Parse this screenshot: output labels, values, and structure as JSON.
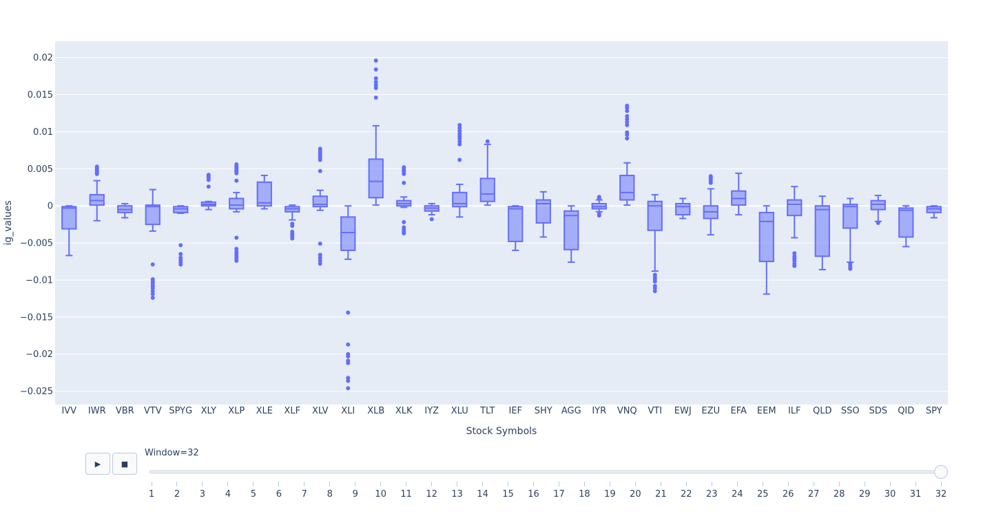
{
  "chart_data": {
    "type": "box",
    "title": "",
    "xlabel": "Stock Symbols",
    "ylabel": "ig_values",
    "ylim": [
      -0.0268,
      0.0222
    ],
    "yticks": [
      0.02,
      0.015,
      0.01,
      0.005,
      0,
      -0.005,
      -0.01,
      -0.015,
      -0.02,
      -0.025
    ],
    "ytick_labels": [
      "0.02",
      "0.015",
      "0.01",
      "0.005",
      "0",
      "−0.005",
      "−0.01",
      "−0.015",
      "−0.02",
      "−0.025"
    ],
    "color": "#636efa",
    "fill": "rgba(99,110,250,0.5)",
    "plot_bg": "#e5ecf6",
    "grid": true,
    "categories": [
      "IVV",
      "IWR",
      "VBR",
      "VTV",
      "SPYG",
      "XLY",
      "XLP",
      "XLE",
      "XLF",
      "XLV",
      "XLI",
      "XLB",
      "XLK",
      "IYZ",
      "XLU",
      "TLT",
      "IEF",
      "SHY",
      "AGG",
      "IYR",
      "VNQ",
      "VTI",
      "EWJ",
      "EZU",
      "EFA",
      "EEM",
      "ILF",
      "QLD",
      "SSO",
      "SDS",
      "QID",
      "SPY"
    ],
    "boxes": [
      {
        "name": "IVV",
        "min": -0.0067,
        "q1": -0.0031,
        "median": -0.0003,
        "q3": -0.0001,
        "max": 0.0,
        "outliers": []
      },
      {
        "name": "IWR",
        "min": -0.002,
        "q1": 0.0001,
        "median": 0.0007,
        "q3": 0.0015,
        "max": 0.0034,
        "outliers": [
          0.0043,
          0.0045,
          0.0047,
          0.0049,
          0.0051,
          0.0053
        ]
      },
      {
        "name": "VBR",
        "min": -0.0016,
        "q1": -0.0009,
        "median": -0.0005,
        "q3": 0.0,
        "max": 0.0003,
        "outliers": []
      },
      {
        "name": "VTV",
        "min": -0.0034,
        "q1": -0.0025,
        "median": -0.0001,
        "q3": 0.0001,
        "max": 0.0022,
        "outliers": [
          -0.0079,
          -0.0099,
          -0.0102,
          -0.0105,
          -0.0108,
          -0.0111,
          -0.0115,
          -0.0119,
          -0.0124
        ]
      },
      {
        "name": "SPYG",
        "min": -0.001,
        "q1": -0.0009,
        "median": -0.0004,
        "q3": -0.0001,
        "max": 0.0,
        "outliers": [
          -0.0053,
          -0.0065,
          -0.007,
          -0.0073,
          -0.0076,
          -0.0079
        ]
      },
      {
        "name": "XLY",
        "min": -0.0005,
        "q1": 0.0,
        "median": 0.0002,
        "q3": 0.0005,
        "max": 0.0006,
        "outliers": [
          0.0026,
          0.0035,
          0.0038,
          0.004,
          0.0042
        ]
      },
      {
        "name": "XLP",
        "min": -0.0008,
        "q1": -0.0004,
        "median": 0.0001,
        "q3": 0.001,
        "max": 0.0018,
        "outliers": [
          0.0034,
          0.0044,
          0.0046,
          0.0048,
          0.005,
          0.0052,
          0.0054,
          0.0056,
          -0.0043,
          -0.0058,
          -0.0062,
          -0.0065,
          -0.0068,
          -0.0071,
          -0.0074
        ]
      },
      {
        "name": "XLE",
        "min": -0.0004,
        "q1": 0.0,
        "median": 0.0004,
        "q3": 0.0032,
        "max": 0.0041,
        "outliers": []
      },
      {
        "name": "XLF",
        "min": -0.0019,
        "q1": -0.0008,
        "median": -0.0004,
        "q3": -0.0001,
        "max": 0.0001,
        "outliers": [
          -0.0024,
          -0.0027,
          -0.0035,
          -0.0038,
          -0.0041,
          -0.0044
        ]
      },
      {
        "name": "XLV",
        "min": -0.0006,
        "q1": -0.0001,
        "median": 0.0002,
        "q3": 0.0013,
        "max": 0.0021,
        "outliers": [
          0.0047,
          0.0062,
          0.0065,
          0.0068,
          0.0071,
          0.0074,
          0.0077,
          -0.0051,
          -0.0066,
          -0.007,
          -0.0074,
          -0.0078
        ]
      },
      {
        "name": "XLI",
        "min": -0.0072,
        "q1": -0.006,
        "median": -0.0036,
        "q3": -0.0015,
        "max": 0.0,
        "outliers": [
          -0.0144,
          -0.0187,
          -0.02,
          -0.0203,
          -0.0209,
          -0.0212,
          -0.0232,
          -0.0236,
          -0.0246
        ]
      },
      {
        "name": "XLB",
        "min": 0.0001,
        "q1": 0.0011,
        "median": 0.0033,
        "q3": 0.0063,
        "max": 0.0108,
        "outliers": [
          0.0146,
          0.0159,
          0.0163,
          0.0167,
          0.0172,
          0.0184,
          0.0196
        ]
      },
      {
        "name": "XLK",
        "min": -0.0002,
        "q1": 0.0,
        "median": 0.0003,
        "q3": 0.0007,
        "max": 0.0012,
        "outliers": [
          0.0031,
          0.0043,
          0.0046,
          0.0048,
          0.005,
          0.0052,
          -0.0022,
          -0.0029,
          -0.0032,
          -0.0035,
          -0.0037
        ]
      },
      {
        "name": "IYZ",
        "min": -0.0012,
        "q1": -0.0007,
        "median": -0.0003,
        "q3": 0.0,
        "max": 0.0003,
        "outliers": [
          -0.0018
        ]
      },
      {
        "name": "XLU",
        "min": -0.0015,
        "q1": -0.0001,
        "median": 0.0003,
        "q3": 0.0018,
        "max": 0.0029,
        "outliers": [
          0.0062,
          0.0083,
          0.0087,
          0.0091,
          0.0094,
          0.0097,
          0.0101,
          0.0105,
          0.0109
        ]
      },
      {
        "name": "TLT",
        "min": 0.0001,
        "q1": 0.0006,
        "median": 0.0016,
        "q3": 0.0037,
        "max": 0.0083,
        "outliers": [
          0.0087
        ]
      },
      {
        "name": "IEF",
        "min": -0.006,
        "q1": -0.0048,
        "median": -0.0004,
        "q3": -0.0001,
        "max": 0.0,
        "outliers": []
      },
      {
        "name": "SHY",
        "min": -0.0042,
        "q1": -0.0023,
        "median": 0.0003,
        "q3": 0.0008,
        "max": 0.0019,
        "outliers": []
      },
      {
        "name": "AGG",
        "min": -0.0076,
        "q1": -0.0059,
        "median": -0.0013,
        "q3": -0.0007,
        "max": 0.0,
        "outliers": []
      },
      {
        "name": "IYR",
        "min": -0.0008,
        "q1": -0.0004,
        "median": -0.0001,
        "q3": 0.0003,
        "max": 0.0008,
        "outliers": [
          0.001,
          0.0012,
          -0.0011,
          -0.0013
        ]
      },
      {
        "name": "VNQ",
        "min": 0.0001,
        "q1": 0.0008,
        "median": 0.0018,
        "q3": 0.0041,
        "max": 0.0058,
        "outliers": [
          0.0091,
          0.0096,
          0.0099,
          0.0109,
          0.0113,
          0.0117,
          0.0121,
          0.0128,
          0.0132,
          0.0135
        ]
      },
      {
        "name": "VTI",
        "min": -0.0088,
        "q1": -0.0033,
        "median": 0.0,
        "q3": 0.0006,
        "max": 0.0015,
        "outliers": [
          -0.0093,
          -0.0096,
          -0.0099,
          -0.0102,
          -0.0108,
          -0.0111,
          -0.0115
        ]
      },
      {
        "name": "EWJ",
        "min": -0.0017,
        "q1": -0.0012,
        "median": -0.0001,
        "q3": 0.0003,
        "max": 0.001,
        "outliers": []
      },
      {
        "name": "EZU",
        "min": -0.0039,
        "q1": -0.0017,
        "median": -0.0008,
        "q3": 0.0,
        "max": 0.0023,
        "outliers": [
          0.0031,
          0.0034,
          0.0036,
          0.0038,
          0.004
        ]
      },
      {
        "name": "EFA",
        "min": -0.0012,
        "q1": 0.0001,
        "median": 0.001,
        "q3": 0.002,
        "max": 0.0044,
        "outliers": []
      },
      {
        "name": "EEM",
        "min": -0.0119,
        "q1": -0.0075,
        "median": -0.0021,
        "q3": -0.0009,
        "max": 0.0,
        "outliers": []
      },
      {
        "name": "ILF",
        "min": -0.0043,
        "q1": -0.0013,
        "median": 0.0002,
        "q3": 0.0008,
        "max": 0.0026,
        "outliers": [
          -0.0064,
          -0.0068,
          -0.0071,
          -0.0074,
          -0.0078,
          -0.0081
        ]
      },
      {
        "name": "QLD",
        "min": -0.0086,
        "q1": -0.0068,
        "median": -0.0005,
        "q3": 0.0,
        "max": 0.0013,
        "outliers": []
      },
      {
        "name": "SSO",
        "min": -0.0076,
        "q1": -0.003,
        "median": -0.0001,
        "q3": 0.0002,
        "max": 0.001,
        "outliers": [
          -0.0078,
          -0.0081,
          -0.0083,
          -0.0085
        ]
      },
      {
        "name": "SDS",
        "min": -0.0021,
        "q1": -0.0005,
        "median": 0.0002,
        "q3": 0.0007,
        "max": 0.0014,
        "outliers": [
          -0.0023
        ]
      },
      {
        "name": "QID",
        "min": -0.0055,
        "q1": -0.0042,
        "median": -0.0006,
        "q3": -0.0003,
        "max": 0.0,
        "outliers": []
      },
      {
        "name": "SPY",
        "min": -0.0016,
        "q1": -0.0009,
        "median": -0.0004,
        "q3": -0.0001,
        "max": 0.0,
        "outliers": []
      }
    ]
  },
  "controls": {
    "play_icon": "▶",
    "stop_icon": "■"
  },
  "slider": {
    "prefix": "Window=",
    "current": 32,
    "readout": "Window=32",
    "steps": [
      "1",
      "2",
      "3",
      "4",
      "5",
      "6",
      "7",
      "8",
      "9",
      "10",
      "11",
      "12",
      "13",
      "14",
      "15",
      "16",
      "17",
      "18",
      "19",
      "20",
      "21",
      "22",
      "23",
      "24",
      "25",
      "26",
      "27",
      "28",
      "29",
      "30",
      "31",
      "32"
    ]
  }
}
